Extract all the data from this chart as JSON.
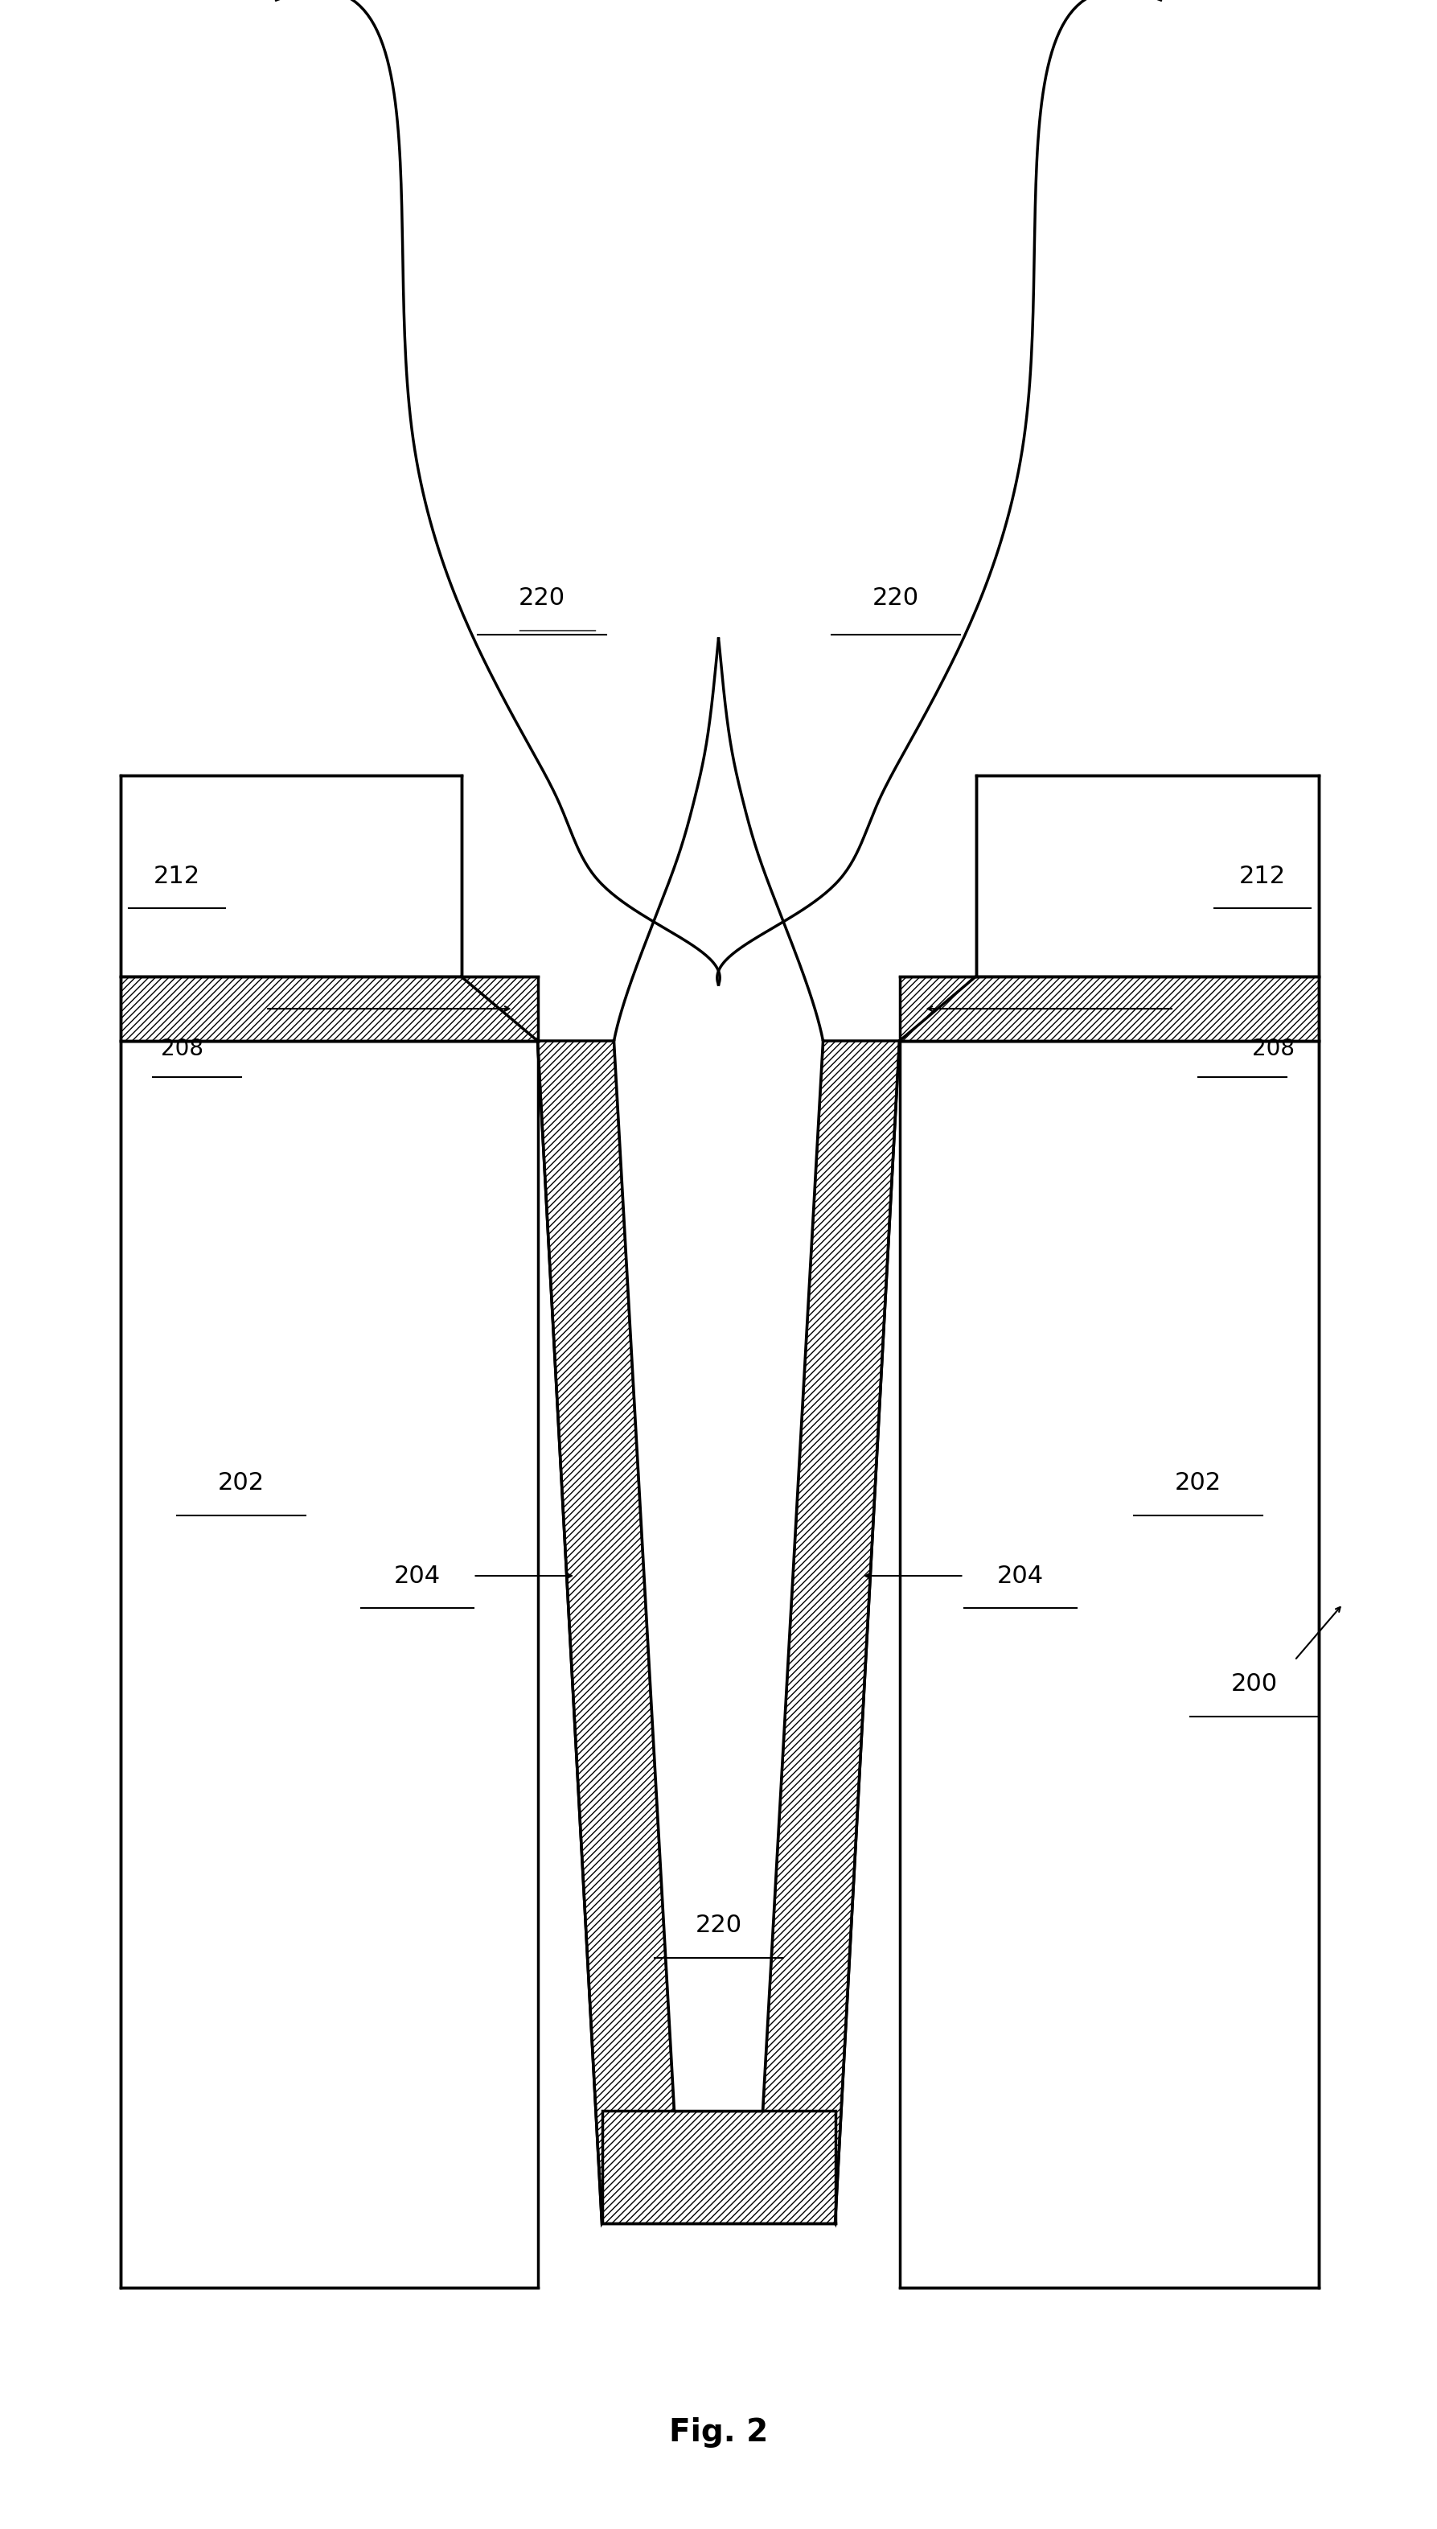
{
  "fig_label": "Fig. 2",
  "labels": {
    "200": "200",
    "202_left": "202",
    "202_right": "202",
    "204_left": "204",
    "204_right": "204",
    "208_left": "208",
    "208_right": "208",
    "212_left": "212",
    "212_right": "212",
    "220_left": "220",
    "220_right": "220",
    "220_bottom": "220"
  },
  "background_color": "#ffffff",
  "line_color": "#000000",
  "hatch_pattern": "/",
  "hatch_color": "#000000",
  "line_width": 2.5,
  "fig_label_fontsize": 28,
  "label_fontsize": 22
}
